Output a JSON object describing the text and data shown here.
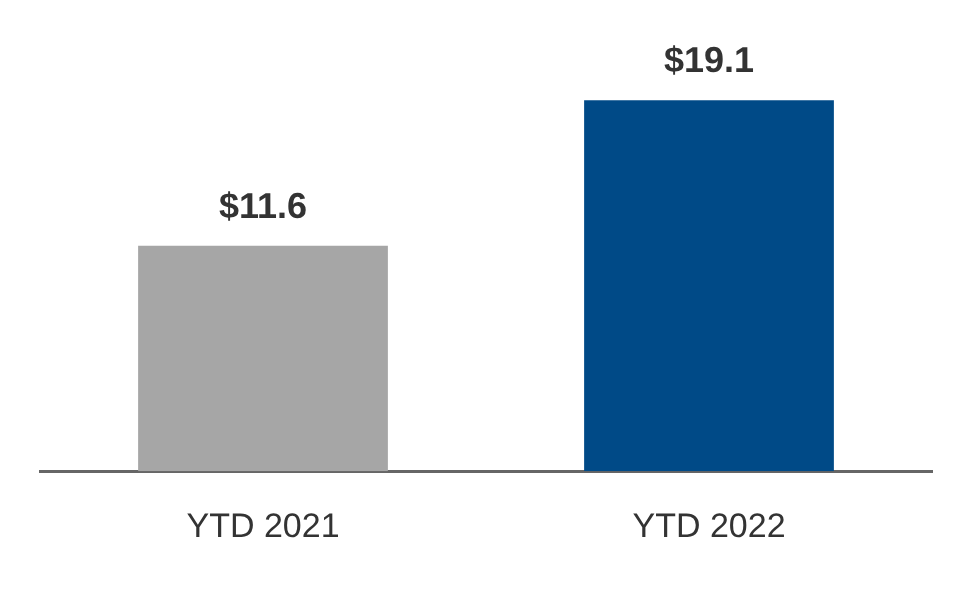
{
  "chart_data": {
    "type": "bar",
    "categories": [
      "YTD 2021",
      "YTD 2022"
    ],
    "values": [
      11.6,
      19.1
    ],
    "colors": [
      "#a6a6a6",
      "#004a87"
    ],
    "value_labels": [
      "$11.6",
      "$19.1"
    ],
    "grid": false,
    "legend": false
  }
}
